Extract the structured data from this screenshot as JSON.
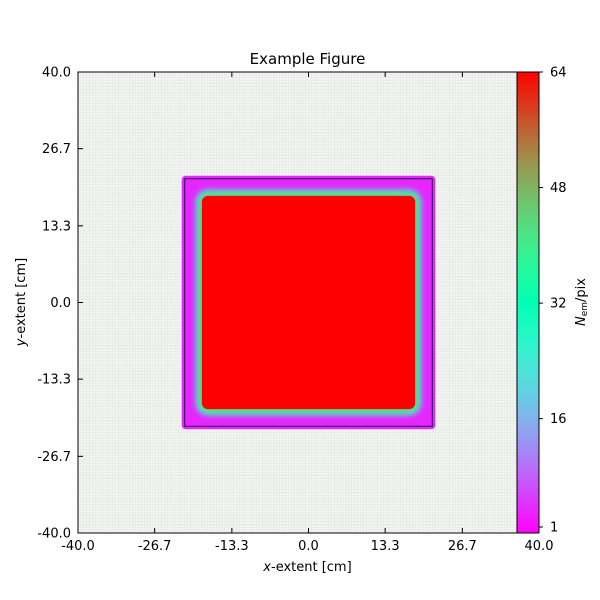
{
  "chart_data": {
    "type": "heatmap",
    "title": "Example Figure",
    "xlabel": {
      "italic": "x",
      "rest": "-extent [cm]"
    },
    "ylabel": {
      "italic": "y",
      "rest": "-extent [cm]"
    },
    "xlim": [
      -40.0,
      40.0
    ],
    "ylim": [
      -40.0,
      40.0
    ],
    "xticks": [
      -40.0,
      -26.7,
      -13.3,
      0.0,
      13.3,
      26.7,
      40.0
    ],
    "xtick_labels": [
      "-40.0",
      "-26.7",
      "-13.3",
      "0.0",
      "13.3",
      "26.7",
      "40.0"
    ],
    "yticks": [
      -40.0,
      -26.7,
      -13.3,
      0.0,
      13.3,
      26.7,
      40.0
    ],
    "ytick_labels": [
      "-40.0",
      "-26.7",
      "-13.3",
      "0.0",
      "13.3",
      "26.7",
      "40.0"
    ],
    "grid": true,
    "colormap": "rainbow",
    "colorbar": {
      "label": {
        "italic": "N",
        "sub": "em",
        "rest": "/pix"
      },
      "range": [
        1,
        64
      ],
      "ticks": [
        1,
        16,
        32,
        48,
        64
      ],
      "tick_labels": [
        "1",
        "16",
        "32",
        "48",
        "64"
      ]
    },
    "regions": [
      {
        "name": "outer-square-edge",
        "x_range": [
          -22.0,
          22.0
        ],
        "y_range": [
          -22.0,
          22.0
        ],
        "value": 4
      },
      {
        "name": "inner-square-plateau",
        "x_range": [
          -18.5,
          18.5
        ],
        "y_range": [
          -18.5,
          18.5
        ],
        "value": 64
      }
    ],
    "background_value": 0
  },
  "colors": {
    "background": "#f4f6f4",
    "grid": "#dfe3df",
    "edge_low": "#6a2cf5",
    "plateau": "#f80e0c"
  }
}
